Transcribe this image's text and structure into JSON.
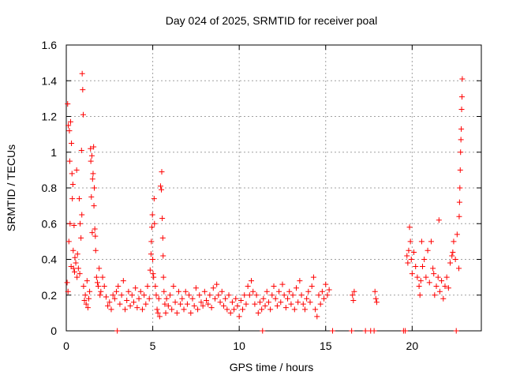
{
  "chart_data": {
    "type": "scatter",
    "title": "Day 024 of 2025, SRMTID for receiver poal",
    "xlabel": "GPS time / hours",
    "ylabel": "SRMTID / TECUs",
    "xlim": [
      0,
      24
    ],
    "ylim": [
      0,
      1.6
    ],
    "grid": true,
    "x_ticks": [
      0,
      5,
      10,
      15,
      20
    ],
    "x_tick_labels": [
      "0",
      "5",
      "10",
      "15",
      "20"
    ],
    "y_ticks": [
      0,
      0.2,
      0.4,
      0.6,
      0.8,
      1.0,
      1.2,
      1.4,
      1.6
    ],
    "y_tick_labels": [
      "0",
      "0.2",
      "0.4",
      "0.6",
      "0.8",
      "1",
      "1.2",
      "1.4",
      "1.6"
    ],
    "marker": "+",
    "series": [
      {
        "name": "SRMTID",
        "color": "#ff0000",
        "points": [
          [
            0.05,
            0.27
          ],
          [
            0.08,
            1.27
          ],
          [
            0.1,
            0.22
          ],
          [
            0.12,
            1.15
          ],
          [
            0.15,
            0.5
          ],
          [
            0.18,
            1.12
          ],
          [
            0.2,
            0.95
          ],
          [
            0.22,
            0.6
          ],
          [
            0.25,
            1.17
          ],
          [
            0.28,
            0.36
          ],
          [
            0.3,
            1.05
          ],
          [
            0.33,
            0.88
          ],
          [
            0.35,
            0.74
          ],
          [
            0.38,
            0.82
          ],
          [
            0.4,
            0.45
          ],
          [
            0.42,
            0.35
          ],
          [
            0.45,
            0.59
          ],
          [
            0.48,
            0.33
          ],
          [
            0.5,
            0.41
          ],
          [
            0.55,
            0.38
          ],
          [
            0.6,
            0.9
          ],
          [
            0.62,
            0.3
          ],
          [
            0.65,
            0.43
          ],
          [
            0.7,
            0.35
          ],
          [
            0.75,
            0.74
          ],
          [
            0.78,
            0.32
          ],
          [
            0.8,
            0.6
          ],
          [
            0.85,
            0.52
          ],
          [
            0.88,
            1.01
          ],
          [
            0.9,
            0.65
          ],
          [
            0.92,
            1.44
          ],
          [
            0.95,
            1.35
          ],
          [
            0.98,
            1.21
          ],
          [
            1.0,
            0.25
          ],
          [
            1.05,
            0.17
          ],
          [
            1.1,
            0.2
          ],
          [
            1.15,
            0.15
          ],
          [
            1.2,
            0.28
          ],
          [
            1.25,
            0.13
          ],
          [
            1.3,
            0.18
          ],
          [
            1.35,
            0.22
          ],
          [
            1.4,
            1.02
          ],
          [
            1.42,
            0.95
          ],
          [
            1.45,
            0.75
          ],
          [
            1.48,
            0.98
          ],
          [
            1.5,
            0.55
          ],
          [
            1.52,
            0.85
          ],
          [
            1.55,
            0.88
          ],
          [
            1.58,
            1.03
          ],
          [
            1.6,
            0.7
          ],
          [
            1.62,
            0.8
          ],
          [
            1.65,
            0.57
          ],
          [
            1.68,
            0.53
          ],
          [
            1.7,
            0.45
          ],
          [
            1.75,
            0.3
          ],
          [
            1.8,
            0.27
          ],
          [
            1.85,
            0.25
          ],
          [
            1.9,
            0.35
          ],
          [
            1.95,
            0.2
          ],
          [
            2.0,
            0.22
          ],
          [
            2.1,
            0.3
          ],
          [
            2.2,
            0.25
          ],
          [
            2.3,
            0.19
          ],
          [
            2.4,
            0.14
          ],
          [
            2.5,
            0.16
          ],
          [
            2.6,
            0.12
          ],
          [
            2.7,
            0.2
          ],
          [
            2.8,
            0.18
          ],
          [
            2.9,
            0.22
          ],
          [
            2.95,
            0.0
          ],
          [
            3.0,
            0.25
          ],
          [
            3.1,
            0.15
          ],
          [
            3.2,
            0.2
          ],
          [
            3.3,
            0.28
          ],
          [
            3.4,
            0.12
          ],
          [
            3.5,
            0.17
          ],
          [
            3.6,
            0.22
          ],
          [
            3.7,
            0.14
          ],
          [
            3.8,
            0.2
          ],
          [
            3.9,
            0.16
          ],
          [
            4.0,
            0.24
          ],
          [
            4.1,
            0.13
          ],
          [
            4.2,
            0.18
          ],
          [
            4.3,
            0.22
          ],
          [
            4.4,
            0.12
          ],
          [
            4.5,
            0.2
          ],
          [
            4.6,
            0.15
          ],
          [
            4.7,
            0.25
          ],
          [
            4.8,
            0.18
          ],
          [
            4.85,
            0.34
          ],
          [
            4.9,
            0.43
          ],
          [
            4.92,
            0.5
          ],
          [
            4.95,
            0.58
          ],
          [
            4.98,
            0.65
          ],
          [
            5.0,
            0.4
          ],
          [
            5.02,
            0.32
          ],
          [
            5.05,
            0.3
          ],
          [
            5.08,
            0.74
          ],
          [
            5.1,
            0.6
          ],
          [
            5.15,
            0.25
          ],
          [
            5.2,
            0.2
          ],
          [
            5.25,
            0.12
          ],
          [
            5.3,
            0.1
          ],
          [
            5.35,
            0.18
          ],
          [
            5.4,
            0.08
          ],
          [
            5.45,
            0.81
          ],
          [
            5.5,
            0.79
          ],
          [
            5.52,
            0.89
          ],
          [
            5.55,
            0.63
          ],
          [
            5.58,
            0.52
          ],
          [
            5.6,
            0.42
          ],
          [
            5.62,
            0.3
          ],
          [
            5.65,
            0.22
          ],
          [
            5.7,
            0.15
          ],
          [
            5.75,
            0.1
          ],
          [
            5.8,
            0.18
          ],
          [
            5.9,
            0.14
          ],
          [
            6.0,
            0.2
          ],
          [
            6.1,
            0.12
          ],
          [
            6.2,
            0.25
          ],
          [
            6.3,
            0.16
          ],
          [
            6.4,
            0.1
          ],
          [
            6.5,
            0.22
          ],
          [
            6.6,
            0.15
          ],
          [
            6.7,
            0.18
          ],
          [
            6.8,
            0.12
          ],
          [
            6.9,
            0.22
          ],
          [
            7.0,
            0.15
          ],
          [
            7.1,
            0.2
          ],
          [
            7.2,
            0.1
          ],
          [
            7.3,
            0.18
          ],
          [
            7.4,
            0.14
          ],
          [
            7.5,
            0.24
          ],
          [
            7.6,
            0.12
          ],
          [
            7.7,
            0.2
          ],
          [
            7.8,
            0.16
          ],
          [
            7.9,
            0.14
          ],
          [
            8.0,
            0.22
          ],
          [
            8.1,
            0.17
          ],
          [
            8.2,
            0.15
          ],
          [
            8.3,
            0.2
          ],
          [
            8.4,
            0.13
          ],
          [
            8.5,
            0.24
          ],
          [
            8.6,
            0.18
          ],
          [
            8.7,
            0.26
          ],
          [
            8.8,
            0.2
          ],
          [
            8.9,
            0.16
          ],
          [
            9.0,
            0.22
          ],
          [
            9.1,
            0.14
          ],
          [
            9.2,
            0.18
          ],
          [
            9.3,
            0.12
          ],
          [
            9.4,
            0.2
          ],
          [
            9.5,
            0.1
          ],
          [
            9.6,
            0.16
          ],
          [
            9.7,
            0.12
          ],
          [
            9.8,
            0.18
          ],
          [
            9.9,
            0.14
          ],
          [
            10.0,
            0.08
          ],
          [
            10.1,
            0.17
          ],
          [
            10.2,
            0.12
          ],
          [
            10.3,
            0.2
          ],
          [
            10.4,
            0.15
          ],
          [
            10.5,
            0.25
          ],
          [
            10.6,
            0.2
          ],
          [
            10.7,
            0.28
          ],
          [
            10.8,
            0.22
          ],
          [
            10.9,
            0.15
          ],
          [
            11.0,
            0.2
          ],
          [
            11.1,
            0.1
          ],
          [
            11.2,
            0.16
          ],
          [
            11.3,
            0.12
          ],
          [
            11.35,
            0.0
          ],
          [
            11.4,
            0.18
          ],
          [
            11.5,
            0.14
          ],
          [
            11.6,
            0.22
          ],
          [
            11.7,
            0.16
          ],
          [
            11.8,
            0.12
          ],
          [
            11.9,
            0.2
          ],
          [
            12.0,
            0.25
          ],
          [
            12.1,
            0.18
          ],
          [
            12.2,
            0.14
          ],
          [
            12.3,
            0.22
          ],
          [
            12.4,
            0.16
          ],
          [
            12.5,
            0.26
          ],
          [
            12.6,
            0.2
          ],
          [
            12.7,
            0.13
          ],
          [
            12.8,
            0.18
          ],
          [
            12.9,
            0.22
          ],
          [
            13.0,
            0.15
          ],
          [
            13.1,
            0.2
          ],
          [
            13.2,
            0.12
          ],
          [
            13.3,
            0.24
          ],
          [
            13.4,
            0.16
          ],
          [
            13.5,
            0.28
          ],
          [
            13.6,
            0.2
          ],
          [
            13.7,
            0.15
          ],
          [
            13.8,
            0.12
          ],
          [
            13.9,
            0.18
          ],
          [
            14.0,
            0.22
          ],
          [
            14.1,
            0.16
          ],
          [
            14.2,
            0.25
          ],
          [
            14.3,
            0.3
          ],
          [
            14.4,
            0.12
          ],
          [
            14.5,
            0.08
          ],
          [
            14.6,
            0.2
          ],
          [
            14.7,
            0.15
          ],
          [
            14.8,
            0.22
          ],
          [
            14.9,
            0.18
          ],
          [
            15.0,
            0.26
          ],
          [
            15.1,
            0.2
          ],
          [
            15.2,
            0.23
          ],
          [
            15.4,
            0.0
          ],
          [
            16.5,
            0.0
          ],
          [
            16.55,
            0.2
          ],
          [
            16.6,
            0.17
          ],
          [
            16.65,
            0.22
          ],
          [
            17.3,
            0.0
          ],
          [
            17.6,
            0.0
          ],
          [
            17.8,
            0.0
          ],
          [
            17.85,
            0.22
          ],
          [
            17.9,
            0.18
          ],
          [
            17.95,
            0.16
          ],
          [
            19.5,
            0.0
          ],
          [
            19.6,
            0.0
          ],
          [
            19.7,
            0.42
          ],
          [
            19.75,
            0.38
          ],
          [
            19.8,
            0.45
          ],
          [
            19.85,
            0.58
          ],
          [
            19.9,
            0.5
          ],
          [
            19.95,
            0.4
          ],
          [
            20.0,
            0.32
          ],
          [
            20.1,
            0.44
          ],
          [
            20.2,
            0.36
          ],
          [
            20.3,
            0.3
          ],
          [
            20.4,
            0.25
          ],
          [
            20.45,
            0.2
          ],
          [
            20.5,
            0.28
          ],
          [
            20.55,
            0.5
          ],
          [
            20.6,
            0.36
          ],
          [
            20.7,
            0.4
          ],
          [
            20.8,
            0.3
          ],
          [
            20.9,
            0.45
          ],
          [
            21.0,
            0.27
          ],
          [
            21.1,
            0.5
          ],
          [
            21.2,
            0.35
          ],
          [
            21.3,
            0.2
          ],
          [
            21.4,
            0.25
          ],
          [
            21.5,
            0.3
          ],
          [
            21.55,
            0.62
          ],
          [
            21.6,
            0.22
          ],
          [
            21.7,
            0.28
          ],
          [
            21.8,
            0.18
          ],
          [
            21.9,
            0.25
          ],
          [
            22.0,
            0.3
          ],
          [
            22.1,
            0.24
          ],
          [
            22.2,
            0.38
          ],
          [
            22.3,
            0.42
          ],
          [
            22.4,
            0.5
          ],
          [
            22.5,
            0.4
          ],
          [
            22.6,
            0.54
          ],
          [
            22.7,
            0.35
          ],
          [
            22.72,
            0.64
          ],
          [
            22.74,
            0.72
          ],
          [
            22.76,
            0.8
          ],
          [
            22.78,
            0.9
          ],
          [
            22.8,
            1.0
          ],
          [
            22.82,
            1.07
          ],
          [
            22.84,
            1.13
          ],
          [
            22.86,
            1.24
          ],
          [
            22.88,
            1.31
          ],
          [
            22.9,
            1.41
          ],
          [
            22.55,
            0.0
          ],
          [
            22.35,
            0.44
          ],
          [
            21.25,
            0.32
          ]
        ]
      }
    ]
  }
}
